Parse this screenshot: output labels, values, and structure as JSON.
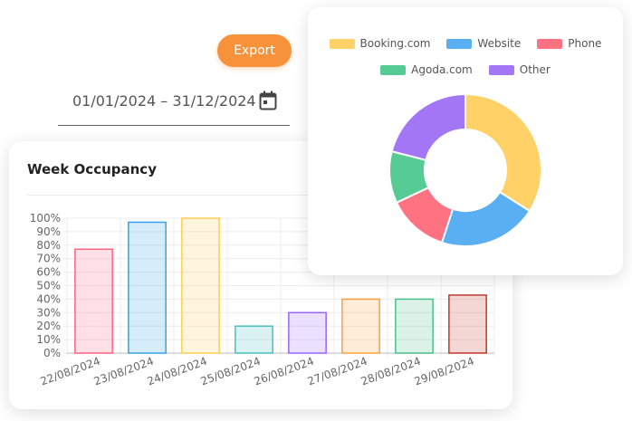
{
  "toolbar": {
    "export_label": "Export"
  },
  "date_filter": {
    "range": "01/01/2024 – 31/12/2024",
    "icon": "calendar-icon"
  },
  "occupancy_card": {
    "title": "Week Occupancy"
  },
  "colors": {
    "red": "#ff6384",
    "blue": "#36a2eb",
    "yellow": "#ffcd56",
    "teal": "#4bc0c0",
    "purple": "#9966ff",
    "orange": "#ff9f40",
    "green": "#4bc08a",
    "darkred": "#c0392b",
    "export": "#f7923a"
  },
  "chart_data": [
    {
      "type": "bar",
      "title": "Week Occupancy",
      "categories": [
        "22/08/2024",
        "23/08/2024",
        "24/08/2024",
        "25/08/2024",
        "26/08/2024",
        "27/08/2024",
        "28/08/2024",
        "29/08/2024"
      ],
      "values": [
        77,
        97,
        100,
        20,
        30,
        40,
        40,
        43
      ],
      "bar_colors": [
        "red",
        "blue",
        "yellow",
        "teal",
        "purple",
        "orange",
        "green",
        "darkred"
      ],
      "ylim": [
        0,
        100
      ],
      "yticks": [
        "0%",
        "10%",
        "20%",
        "30%",
        "40%",
        "50%",
        "60%",
        "70%",
        "80%",
        "90%",
        "100%"
      ],
      "grid": true
    },
    {
      "type": "pie",
      "variant": "doughnut",
      "legend_position": "top",
      "labels": [
        "Booking.com",
        "Website",
        "Phone",
        "Agoda.com",
        "Other"
      ],
      "values": [
        34,
        21,
        13,
        11,
        21
      ],
      "colors": [
        "#ffd166",
        "#5aaef2",
        "#ff7282",
        "#57cb94",
        "#a276f5"
      ]
    }
  ]
}
